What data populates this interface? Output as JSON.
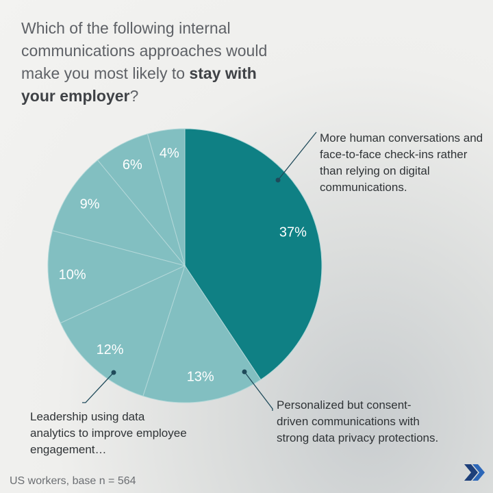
{
  "chart_data": {
    "type": "pie",
    "title": "Which of the following internal communications approaches would make you most likely to ",
    "title_emphasis": "stay with your employer",
    "title_end": "?",
    "categories": [
      null,
      null,
      null,
      null,
      null,
      null,
      null
    ],
    "values": [
      37,
      13,
      12,
      10,
      9,
      6,
      4
    ],
    "value_labels": [
      "37%",
      "13%",
      "12%",
      "10%",
      "9%",
      "6%",
      "4%"
    ],
    "colors": [
      "#0f8084",
      "#82bfc1",
      "#82bfc1",
      "#82bfc1",
      "#82bfc1",
      "#82bfc1",
      "#82bfc1"
    ],
    "annotations": [
      {
        "text": "More human conversations and face-to-face check-ins rather than relying on digital communications.",
        "slice": 0
      },
      {
        "text": "Personalized but consent-driven communications with strong data privacy protections.",
        "slice": 1
      },
      {
        "text": "Leadership using data analytics to improve employee engagement…",
        "slice": 2
      }
    ],
    "footnote": "US workers, base n = 564"
  }
}
